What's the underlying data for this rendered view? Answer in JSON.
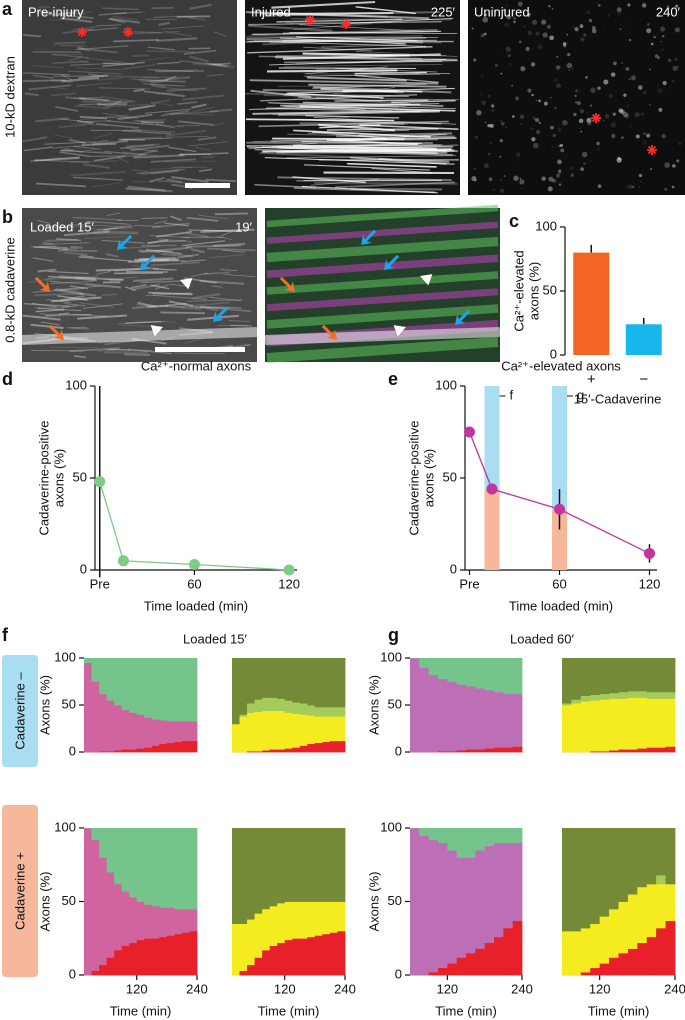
{
  "figure": {
    "panel_labels": [
      "a",
      "b",
      "c",
      "d",
      "e",
      "f",
      "g"
    ],
    "a": {
      "side_label": "10-kD dextran",
      "images": [
        {
          "label": "Pre-injury"
        },
        {
          "label": "Injured",
          "time": "225′"
        },
        {
          "label": "Uninjured",
          "time": "240′"
        }
      ]
    },
    "b": {
      "side_label": "0.8-kD cadaverine",
      "label": "Loaded 15′",
      "time": "19′"
    },
    "f_title": "Loaded 15′",
    "g_title": "Loaded 60′",
    "row_labels": [
      "Cadaverine –",
      "Cadaverine +"
    ]
  },
  "chart_data": [
    {
      "type": "bar",
      "categories": [
        "+",
        "−"
      ],
      "values": [
        80,
        24
      ],
      "errors": [
        6,
        5
      ],
      "colors": [
        "#f26522",
        "#17b7ec"
      ],
      "ylim": [
        0,
        100
      ],
      "yticks": [
        0,
        50,
        100
      ],
      "ylabel": [
        "Ca²⁺-elevated",
        "axons (%)"
      ],
      "xlabel": "15′-Cadaverine"
    },
    {
      "type": "line",
      "title": "Ca²⁺-normal axons",
      "x": [
        0,
        15,
        60,
        120
      ],
      "values": [
        48,
        5,
        3,
        0
      ],
      "errors": [
        52,
        0,
        0,
        0
      ],
      "color": "#7dcb85",
      "xlim": [
        -3,
        125
      ],
      "xticks": [
        {
          "value": 0,
          "label": "Pre"
        },
        60,
        120
      ],
      "ylim": [
        0,
        100
      ],
      "yticks": [
        0,
        50,
        100
      ],
      "ylabel": [
        "Cadaverine-positive",
        "axons (%)"
      ],
      "xlabel": "Time loaded (min)"
    },
    {
      "type": "line",
      "title": "Ca²⁺-elevated axons",
      "x": [
        0,
        15,
        60,
        120
      ],
      "values": [
        75,
        44,
        33,
        9
      ],
      "errors": [
        0,
        0,
        11,
        5
      ],
      "color": "#c0359f",
      "xlim": [
        -3,
        125
      ],
      "xticks": [
        {
          "value": 0,
          "label": "Pre"
        },
        60,
        120
      ],
      "ylim": [
        0,
        100
      ],
      "yticks": [
        0,
        50,
        100
      ],
      "ylabel": [
        "Cadaverine-positive",
        "axons (%)"
      ],
      "xlabel": "Time loaded (min)",
      "highlights": [
        {
          "x": 15,
          "label": "f"
        },
        {
          "x": 60,
          "label": "g"
        }
      ],
      "highlight_colors": [
        "#a9def2",
        "#f6b79a"
      ]
    },
    {
      "type": "area",
      "x": [
        15,
        30,
        45,
        60,
        75,
        90,
        105,
        120,
        135,
        150,
        165,
        180,
        195,
        210,
        225
      ],
      "xlim": [
        15,
        240
      ],
      "ylim": [
        0,
        100
      ],
      "yticks": [
        0,
        50,
        100
      ],
      "ylabel": "Axons (%)",
      "series": [
        {
          "color": "#e8202a",
          "values": [
            0,
            0,
            1,
            1,
            2,
            3,
            3,
            4,
            5,
            7,
            9,
            10,
            11,
            12,
            12
          ]
        },
        {
          "color": "#d0649f",
          "values": [
            95,
            75,
            61,
            54,
            48,
            42,
            39,
            36,
            32,
            28,
            25,
            23,
            22,
            21,
            21
          ]
        },
        {
          "color": "#74c48c",
          "values": [
            5,
            25,
            38,
            45,
            50,
            55,
            58,
            60,
            63,
            65,
            66,
            67,
            67,
            67,
            67
          ]
        }
      ]
    },
    {
      "type": "area",
      "x": [
        15,
        30,
        45,
        60,
        75,
        90,
        105,
        120,
        135,
        150,
        165,
        180,
        195,
        210,
        225
      ],
      "xlim": [
        15,
        240
      ],
      "ylim": [
        0,
        100
      ],
      "series": [
        {
          "color": "#e8202a",
          "values": [
            0,
            0,
            1,
            1,
            2,
            3,
            3,
            4,
            5,
            7,
            9,
            10,
            11,
            12,
            12
          ]
        },
        {
          "color": "#f5ec1f",
          "values": [
            30,
            38,
            41,
            42,
            42,
            41,
            41,
            38,
            36,
            33,
            30,
            28,
            27,
            26,
            26
          ]
        },
        {
          "color": "#a5cc5a",
          "values": [
            0,
            2,
            10,
            13,
            14,
            14,
            13,
            13,
            12,
            12,
            11,
            10,
            10,
            10,
            10
          ]
        },
        {
          "color": "#748a36",
          "values": [
            70,
            60,
            48,
            44,
            42,
            42,
            43,
            45,
            47,
            48,
            50,
            52,
            52,
            52,
            52
          ]
        }
      ]
    },
    {
      "type": "area",
      "x": [
        15,
        30,
        45,
        60,
        75,
        90,
        105,
        120,
        135,
        150,
        165,
        180,
        195,
        210,
        225
      ],
      "xlim": [
        15,
        240
      ],
      "ylim": [
        0,
        100
      ],
      "yticks": [
        0,
        50,
        100
      ],
      "ylabel": "Axons (%)",
      "xticks": [
        120,
        240
      ],
      "xlabel": "Time (min)",
      "series": [
        {
          "color": "#e8202a",
          "values": [
            0,
            3,
            7,
            12,
            17,
            20,
            22,
            24,
            25,
            25,
            26,
            27,
            28,
            29,
            30
          ]
        },
        {
          "color": "#d0649f",
          "values": [
            100,
            89,
            73,
            58,
            45,
            37,
            31,
            26,
            23,
            22,
            20,
            19,
            17,
            16,
            15
          ]
        },
        {
          "color": "#74c48c",
          "values": [
            0,
            8,
            20,
            30,
            38,
            43,
            47,
            50,
            52,
            53,
            54,
            54,
            55,
            55,
            55
          ]
        }
      ]
    },
    {
      "type": "area",
      "x": [
        15,
        30,
        45,
        60,
        75,
        90,
        105,
        120,
        135,
        150,
        165,
        180,
        195,
        210,
        225
      ],
      "xlim": [
        15,
        240
      ],
      "ylim": [
        0,
        100
      ],
      "xticks": [
        120,
        240
      ],
      "xlabel": "Time (min)",
      "series": [
        {
          "color": "#e8202a",
          "values": [
            0,
            3,
            7,
            12,
            17,
            20,
            22,
            24,
            25,
            25,
            26,
            27,
            28,
            29,
            30
          ]
        },
        {
          "color": "#f5ec1f",
          "values": [
            35,
            32,
            31,
            30,
            28,
            27,
            27,
            26,
            25,
            25,
            24,
            23,
            22,
            21,
            20
          ]
        },
        {
          "color": "#748a36",
          "values": [
            65,
            65,
            62,
            58,
            55,
            53,
            51,
            50,
            50,
            50,
            50,
            50,
            50,
            50,
            50
          ]
        }
      ]
    },
    {
      "type": "area",
      "x": [
        60,
        75,
        90,
        105,
        120,
        135,
        150,
        165,
        180,
        195,
        210,
        225
      ],
      "xlim": [
        60,
        240
      ],
      "ylim": [
        0,
        100
      ],
      "yticks": [
        0,
        50,
        100
      ],
      "ylabel": "Axons (%)",
      "series": [
        {
          "color": "#e8202a",
          "values": [
            0,
            0,
            0,
            1,
            1,
            2,
            3,
            3,
            4,
            5,
            5,
            6
          ]
        },
        {
          "color": "#bd6fb6",
          "values": [
            100,
            90,
            82,
            77,
            74,
            70,
            67,
            65,
            62,
            59,
            57,
            56
          ]
        },
        {
          "color": "#74c48c",
          "values": [
            0,
            10,
            18,
            22,
            25,
            28,
            30,
            32,
            34,
            36,
            38,
            38
          ]
        }
      ]
    },
    {
      "type": "area",
      "x": [
        60,
        75,
        90,
        105,
        120,
        135,
        150,
        165,
        180,
        195,
        210,
        225
      ],
      "xlim": [
        60,
        240
      ],
      "ylim": [
        0,
        100
      ],
      "series": [
        {
          "color": "#e8202a",
          "values": [
            0,
            0,
            0,
            1,
            1,
            2,
            3,
            3,
            4,
            5,
            5,
            6
          ]
        },
        {
          "color": "#f5ec1f",
          "values": [
            50,
            52,
            54,
            54,
            55,
            55,
            54,
            55,
            54,
            52,
            52,
            51
          ]
        },
        {
          "color": "#a5cc5a",
          "values": [
            2,
            4,
            6,
            6,
            6,
            6,
            7,
            7,
            7,
            7,
            7,
            7
          ]
        },
        {
          "color": "#748a36",
          "values": [
            48,
            44,
            40,
            39,
            38,
            37,
            36,
            35,
            35,
            36,
            36,
            36
          ]
        }
      ]
    },
    {
      "type": "area",
      "x": [
        60,
        75,
        90,
        105,
        120,
        135,
        150,
        165,
        180,
        195,
        210,
        225
      ],
      "xlim": [
        60,
        240
      ],
      "ylim": [
        0,
        100
      ],
      "yticks": [
        0,
        50,
        100
      ],
      "ylabel": "Axons (%)",
      "xticks": [
        120,
        240
      ],
      "xlabel": "Time (min)",
      "series": [
        {
          "color": "#e8202a",
          "values": [
            0,
            0,
            2,
            5,
            8,
            12,
            15,
            18,
            22,
            26,
            32,
            37
          ]
        },
        {
          "color": "#bd6fb6",
          "values": [
            100,
            95,
            90,
            85,
            77,
            68,
            65,
            67,
            66,
            64,
            58,
            53
          ]
        },
        {
          "color": "#74c48c",
          "values": [
            0,
            5,
            8,
            10,
            15,
            20,
            20,
            15,
            12,
            10,
            10,
            10
          ]
        }
      ]
    },
    {
      "type": "area",
      "x": [
        60,
        75,
        90,
        105,
        120,
        135,
        150,
        165,
        180,
        195,
        210,
        225
      ],
      "xlim": [
        60,
        240
      ],
      "ylim": [
        0,
        100
      ],
      "xticks": [
        120,
        240
      ],
      "xlabel": "Time (min)",
      "series": [
        {
          "color": "#e8202a",
          "values": [
            0,
            0,
            2,
            5,
            8,
            12,
            15,
            18,
            22,
            26,
            32,
            37
          ]
        },
        {
          "color": "#f5ec1f",
          "values": [
            30,
            30,
            30,
            30,
            32,
            33,
            35,
            37,
            38,
            36,
            30,
            25
          ]
        },
        {
          "color": "#a5cc5a",
          "values": [
            0,
            0,
            0,
            0,
            0,
            0,
            0,
            0,
            0,
            0,
            6,
            0
          ]
        },
        {
          "color": "#748a36",
          "values": [
            70,
            70,
            68,
            65,
            60,
            55,
            50,
            45,
            40,
            38,
            32,
            38
          ]
        }
      ]
    }
  ]
}
